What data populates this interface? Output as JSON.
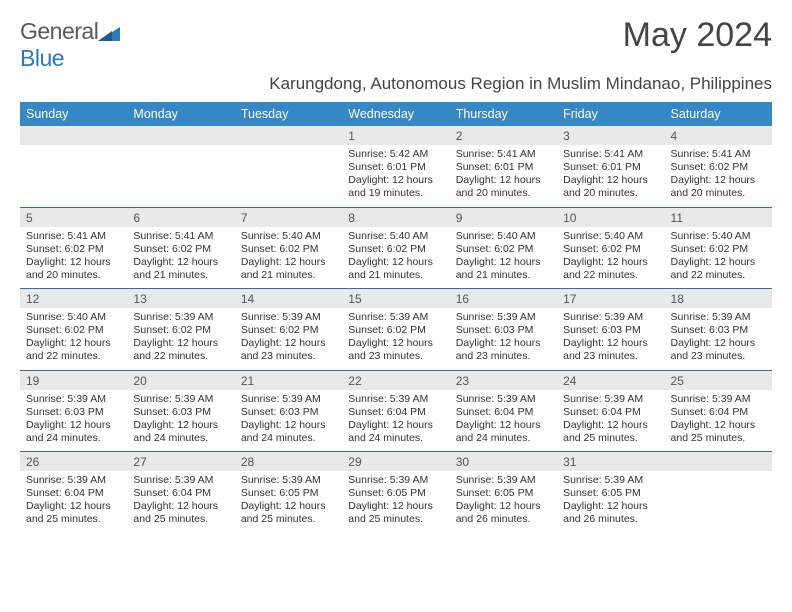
{
  "logo": {
    "word1": "General",
    "word2": "Blue"
  },
  "title": "May 2024",
  "subtitle": "Karungdong, Autonomous Region in Muslim Mindanao, Philippines",
  "colors": {
    "header_bg": "#3587c6",
    "header_text": "#ffffff",
    "row_border": "#2b6fa6",
    "daynum_bg": "#e9e9e9",
    "daynum_text": "#555555",
    "body_text": "#333333",
    "title_text": "#444444",
    "logo_gray": "#5a5a5a",
    "logo_blue": "#2b7bb9",
    "page_bg": "#ffffff"
  },
  "weekdays": [
    "Sunday",
    "Monday",
    "Tuesday",
    "Wednesday",
    "Thursday",
    "Friday",
    "Saturday"
  ],
  "weeks": [
    [
      {
        "n": "",
        "lines": []
      },
      {
        "n": "",
        "lines": []
      },
      {
        "n": "",
        "lines": []
      },
      {
        "n": "1",
        "lines": [
          "Sunrise: 5:42 AM",
          "Sunset: 6:01 PM",
          "Daylight: 12 hours and 19 minutes."
        ]
      },
      {
        "n": "2",
        "lines": [
          "Sunrise: 5:41 AM",
          "Sunset: 6:01 PM",
          "Daylight: 12 hours and 20 minutes."
        ]
      },
      {
        "n": "3",
        "lines": [
          "Sunrise: 5:41 AM",
          "Sunset: 6:01 PM",
          "Daylight: 12 hours and 20 minutes."
        ]
      },
      {
        "n": "4",
        "lines": [
          "Sunrise: 5:41 AM",
          "Sunset: 6:02 PM",
          "Daylight: 12 hours and 20 minutes."
        ]
      }
    ],
    [
      {
        "n": "5",
        "lines": [
          "Sunrise: 5:41 AM",
          "Sunset: 6:02 PM",
          "Daylight: 12 hours and 20 minutes."
        ]
      },
      {
        "n": "6",
        "lines": [
          "Sunrise: 5:41 AM",
          "Sunset: 6:02 PM",
          "Daylight: 12 hours and 21 minutes."
        ]
      },
      {
        "n": "7",
        "lines": [
          "Sunrise: 5:40 AM",
          "Sunset: 6:02 PM",
          "Daylight: 12 hours and 21 minutes."
        ]
      },
      {
        "n": "8",
        "lines": [
          "Sunrise: 5:40 AM",
          "Sunset: 6:02 PM",
          "Daylight: 12 hours and 21 minutes."
        ]
      },
      {
        "n": "9",
        "lines": [
          "Sunrise: 5:40 AM",
          "Sunset: 6:02 PM",
          "Daylight: 12 hours and 21 minutes."
        ]
      },
      {
        "n": "10",
        "lines": [
          "Sunrise: 5:40 AM",
          "Sunset: 6:02 PM",
          "Daylight: 12 hours and 22 minutes."
        ]
      },
      {
        "n": "11",
        "lines": [
          "Sunrise: 5:40 AM",
          "Sunset: 6:02 PM",
          "Daylight: 12 hours and 22 minutes."
        ]
      }
    ],
    [
      {
        "n": "12",
        "lines": [
          "Sunrise: 5:40 AM",
          "Sunset: 6:02 PM",
          "Daylight: 12 hours and 22 minutes."
        ]
      },
      {
        "n": "13",
        "lines": [
          "Sunrise: 5:39 AM",
          "Sunset: 6:02 PM",
          "Daylight: 12 hours and 22 minutes."
        ]
      },
      {
        "n": "14",
        "lines": [
          "Sunrise: 5:39 AM",
          "Sunset: 6:02 PM",
          "Daylight: 12 hours and 23 minutes."
        ]
      },
      {
        "n": "15",
        "lines": [
          "Sunrise: 5:39 AM",
          "Sunset: 6:02 PM",
          "Daylight: 12 hours and 23 minutes."
        ]
      },
      {
        "n": "16",
        "lines": [
          "Sunrise: 5:39 AM",
          "Sunset: 6:03 PM",
          "Daylight: 12 hours and 23 minutes."
        ]
      },
      {
        "n": "17",
        "lines": [
          "Sunrise: 5:39 AM",
          "Sunset: 6:03 PM",
          "Daylight: 12 hours and 23 minutes."
        ]
      },
      {
        "n": "18",
        "lines": [
          "Sunrise: 5:39 AM",
          "Sunset: 6:03 PM",
          "Daylight: 12 hours and 23 minutes."
        ]
      }
    ],
    [
      {
        "n": "19",
        "lines": [
          "Sunrise: 5:39 AM",
          "Sunset: 6:03 PM",
          "Daylight: 12 hours and 24 minutes."
        ]
      },
      {
        "n": "20",
        "lines": [
          "Sunrise: 5:39 AM",
          "Sunset: 6:03 PM",
          "Daylight: 12 hours and 24 minutes."
        ]
      },
      {
        "n": "21",
        "lines": [
          "Sunrise: 5:39 AM",
          "Sunset: 6:03 PM",
          "Daylight: 12 hours and 24 minutes."
        ]
      },
      {
        "n": "22",
        "lines": [
          "Sunrise: 5:39 AM",
          "Sunset: 6:04 PM",
          "Daylight: 12 hours and 24 minutes."
        ]
      },
      {
        "n": "23",
        "lines": [
          "Sunrise: 5:39 AM",
          "Sunset: 6:04 PM",
          "Daylight: 12 hours and 24 minutes."
        ]
      },
      {
        "n": "24",
        "lines": [
          "Sunrise: 5:39 AM",
          "Sunset: 6:04 PM",
          "Daylight: 12 hours and 25 minutes."
        ]
      },
      {
        "n": "25",
        "lines": [
          "Sunrise: 5:39 AM",
          "Sunset: 6:04 PM",
          "Daylight: 12 hours and 25 minutes."
        ]
      }
    ],
    [
      {
        "n": "26",
        "lines": [
          "Sunrise: 5:39 AM",
          "Sunset: 6:04 PM",
          "Daylight: 12 hours and 25 minutes."
        ]
      },
      {
        "n": "27",
        "lines": [
          "Sunrise: 5:39 AM",
          "Sunset: 6:04 PM",
          "Daylight: 12 hours and 25 minutes."
        ]
      },
      {
        "n": "28",
        "lines": [
          "Sunrise: 5:39 AM",
          "Sunset: 6:05 PM",
          "Daylight: 12 hours and 25 minutes."
        ]
      },
      {
        "n": "29",
        "lines": [
          "Sunrise: 5:39 AM",
          "Sunset: 6:05 PM",
          "Daylight: 12 hours and 25 minutes."
        ]
      },
      {
        "n": "30",
        "lines": [
          "Sunrise: 5:39 AM",
          "Sunset: 6:05 PM",
          "Daylight: 12 hours and 26 minutes."
        ]
      },
      {
        "n": "31",
        "lines": [
          "Sunrise: 5:39 AM",
          "Sunset: 6:05 PM",
          "Daylight: 12 hours and 26 minutes."
        ]
      },
      {
        "n": "",
        "lines": []
      }
    ]
  ]
}
